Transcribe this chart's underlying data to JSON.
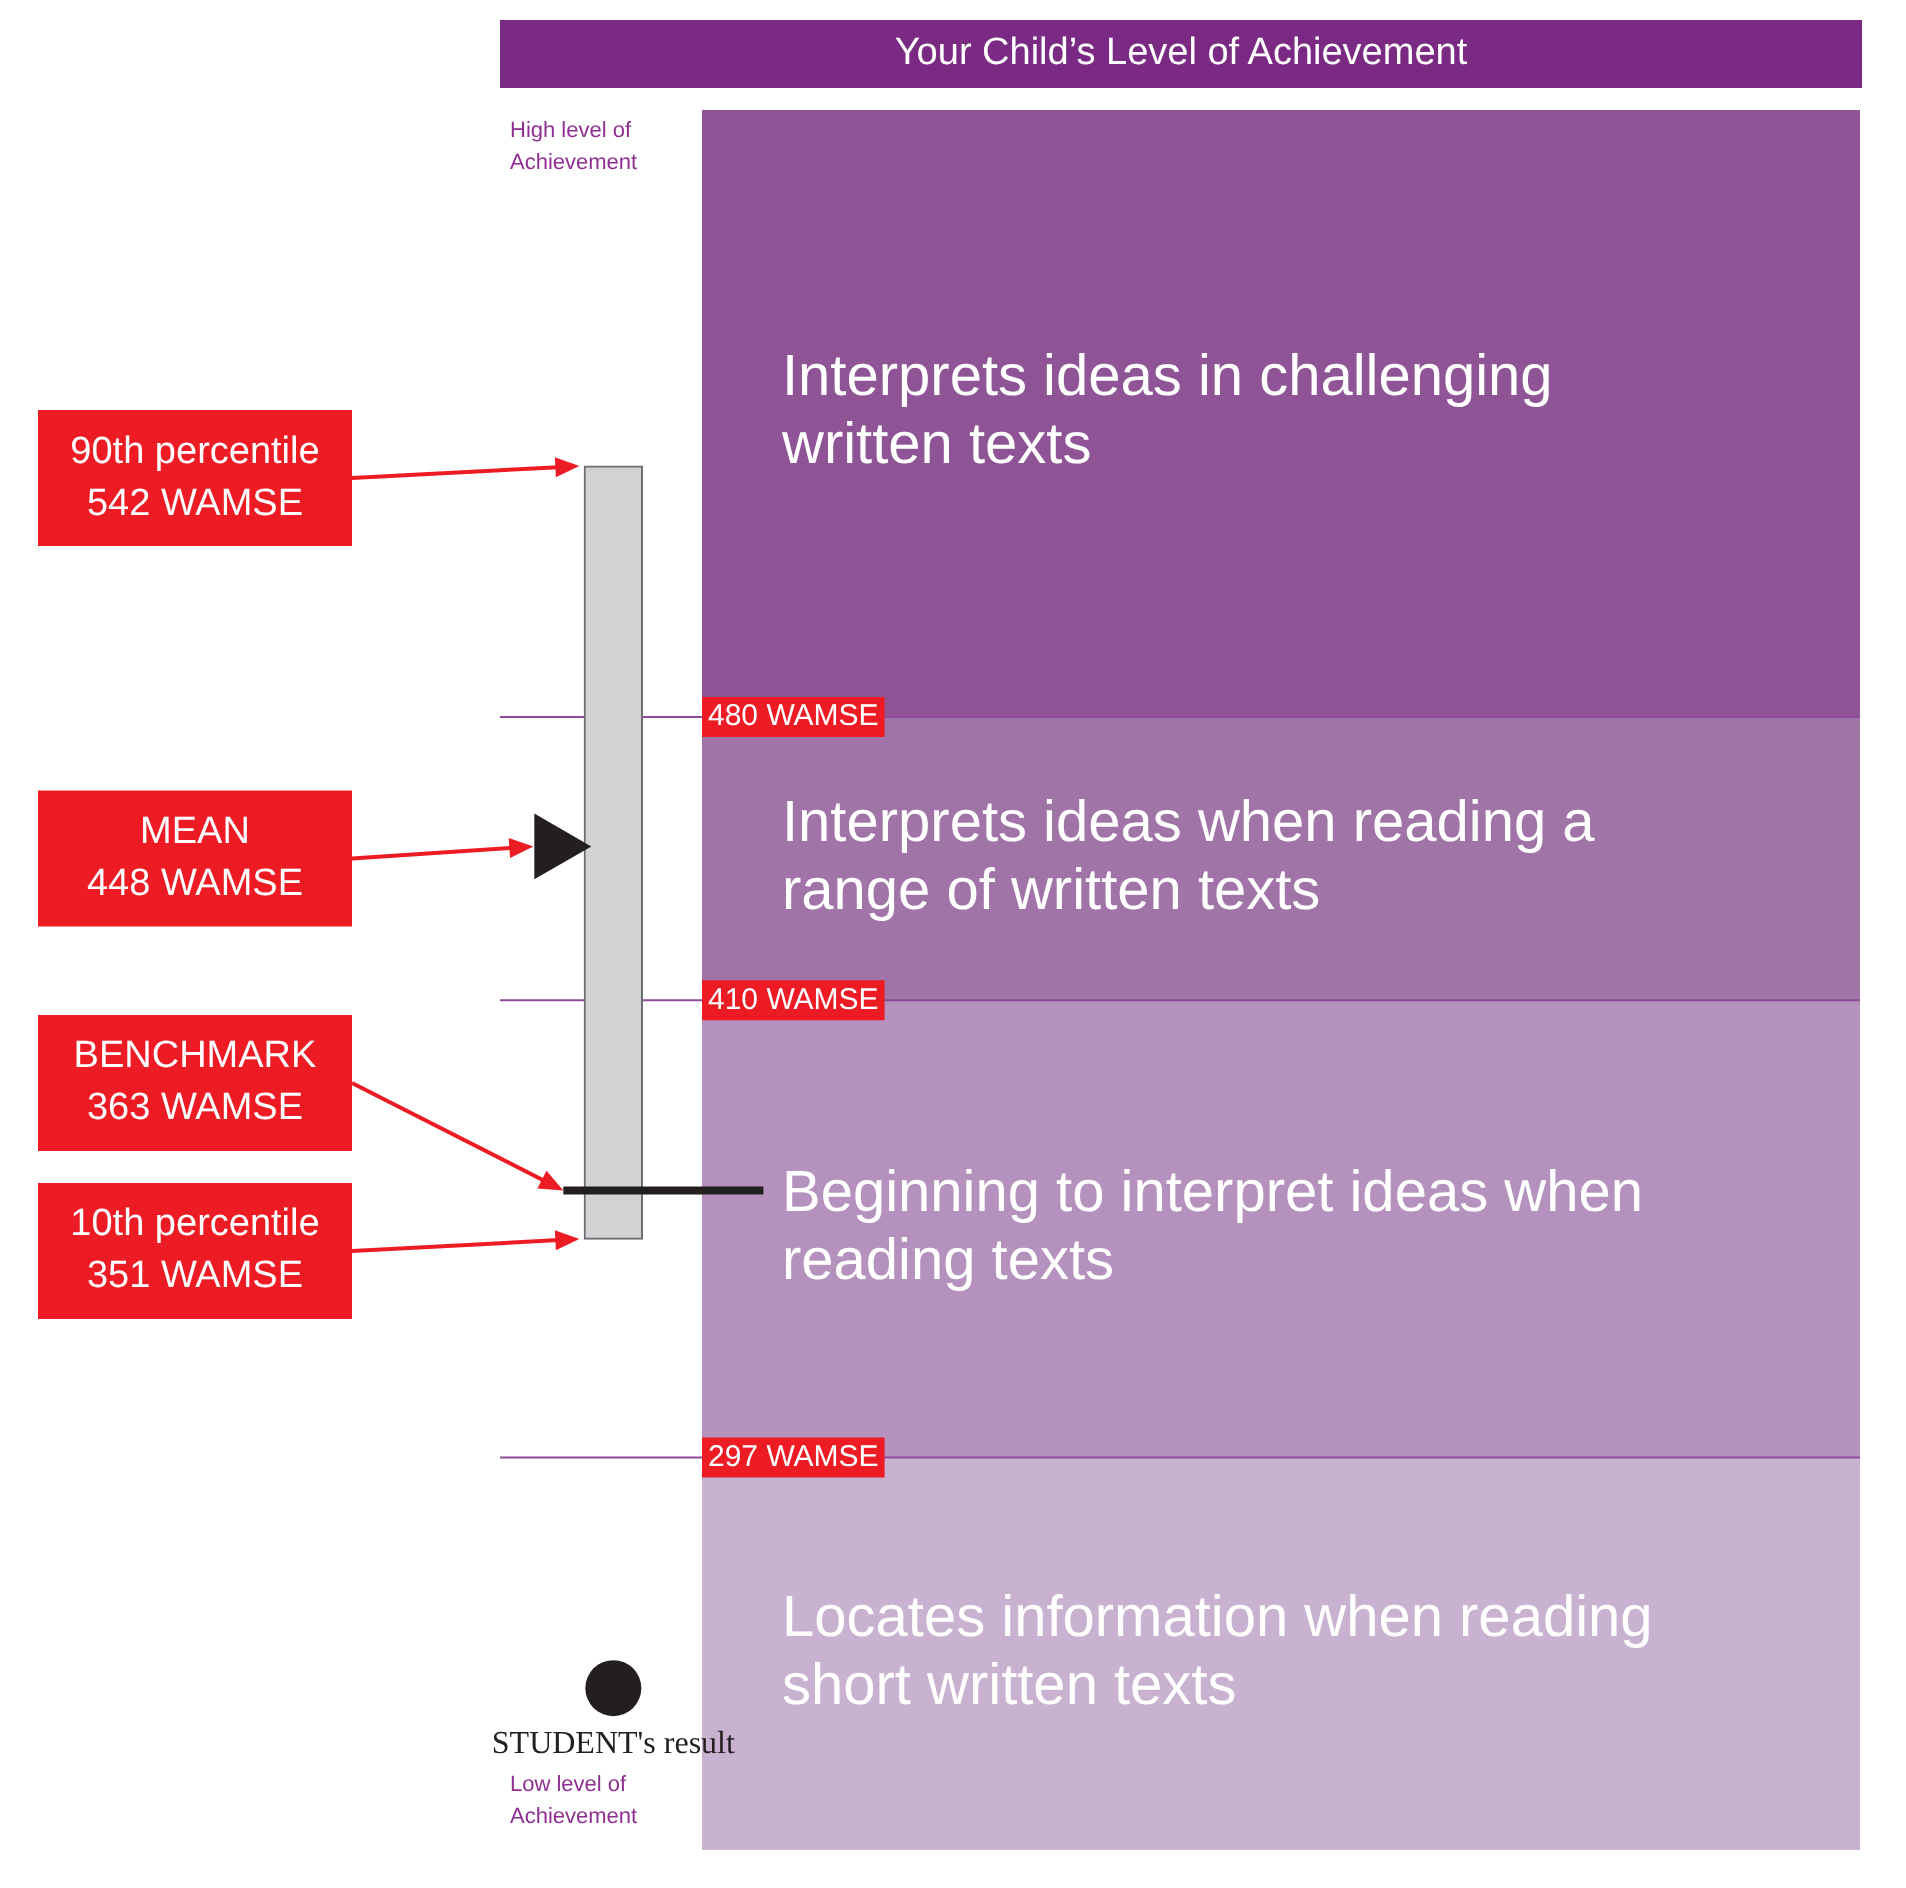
{
  "chart_data": {
    "type": "bar",
    "title": "Your Child’s Level of Achievement",
    "categories": [
      null,
      null,
      null,
      null,
      null,
      null
    ],
    "ylim": [
      200,
      630
    ],
    "yticks": [
      {
        "value": 480,
        "label": "480 WAMSE"
      },
      {
        "value": 410,
        "label": "410 WAMSE"
      },
      {
        "value": 297,
        "label": "297 WAMSE"
      }
    ],
    "tick_labels": "y",
    "grid": "y",
    "series": [
      {
        "type": "bar",
        "values": [
          191,
          null,
          null,
          null,
          null,
          null
        ],
        "base": [
          351,
          null,
          null,
          null,
          null,
          null
        ],
        "color": "#d1d2d4"
      },
      {
        "type": "scatter",
        "values": [
          448,
          null,
          null,
          null,
          null,
          null
        ],
        "marker": "triangle",
        "color": "#231f20"
      },
      {
        "type": "scatter",
        "name": "STUDENT's result",
        "values": [
          240,
          null,
          null,
          null,
          null,
          null
        ],
        "marker": "circle",
        "color": "#231f20"
      }
    ],
    "bands": [
      {
        "axis": "y",
        "from": 480,
        "to": 630,
        "label": "Interprets ideas in challenging written texts",
        "color": "#8e5496"
      },
      {
        "axis": "y",
        "from": 410,
        "to": 480,
        "label": "Interprets ideas when reading a range of written texts",
        "color": "#a174a8"
      },
      {
        "axis": "y",
        "from": 297,
        "to": 410,
        "label": "Beginning to interpret ideas when reading texts",
        "color": "#b592be"
      },
      {
        "axis": "y",
        "from": 200,
        "to": 297,
        "label": "Locates information when reading short written texts",
        "color": "#c9b1d0"
      }
    ],
    "ref_lines": [
      {
        "axis": "y",
        "value": 363,
        "label": "BENCHMARK 363 WAMSE",
        "color": "#231f20"
      }
    ],
    "annotations": [
      "High level of Achievement",
      "Low level of Achievement",
      "90th percentile 542 WAMSE",
      "MEAN 448 WAMSE",
      "10th percentile 351 WAMSE"
    ]
  }
}
